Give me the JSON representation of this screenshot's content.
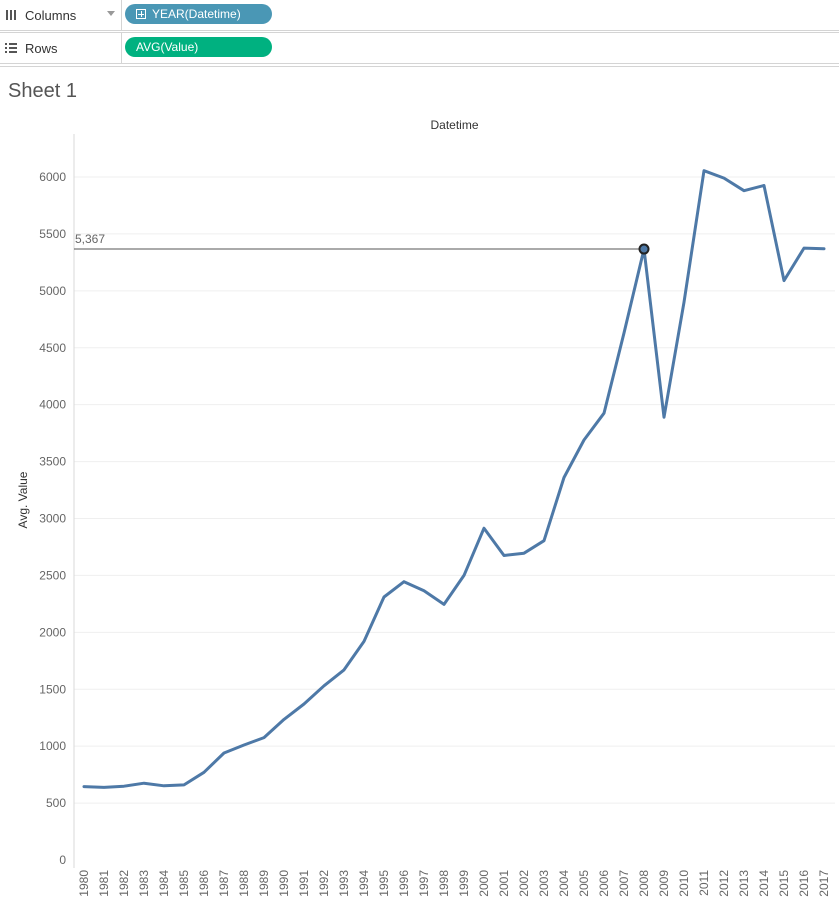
{
  "shelves": {
    "columns": {
      "label": "Columns",
      "pill": "YEAR(Datetime)",
      "pill_color": "#4a97b5"
    },
    "rows": {
      "label": "Rows",
      "pill": "AVG(Value)",
      "pill_color": "#00b180"
    }
  },
  "sheet": {
    "title": "Sheet 1"
  },
  "chart_data": {
    "type": "line",
    "title": "Datetime",
    "xlabel": "",
    "ylabel": "Avg. Value",
    "categories": [
      "1980",
      "1981",
      "1982",
      "1983",
      "1984",
      "1985",
      "1986",
      "1987",
      "1988",
      "1989",
      "1990",
      "1991",
      "1992",
      "1993",
      "1994",
      "1995",
      "1996",
      "1997",
      "1998",
      "1999",
      "2000",
      "2001",
      "2002",
      "2003",
      "2004",
      "2005",
      "2006",
      "2007",
      "2008",
      "2009",
      "2010",
      "2011",
      "2012",
      "2013",
      "2014",
      "2015",
      "2016",
      "2017"
    ],
    "series": [
      {
        "color": "#4e79a7",
        "values": [
          645,
          638,
          648,
          675,
          652,
          660,
          770,
          940,
          1010,
          1075,
          1235,
          1370,
          1530,
          1670,
          1920,
          2310,
          2445,
          2365,
          2245,
          2500,
          2915,
          2675,
          2695,
          2805,
          3360,
          3690,
          3925,
          4630,
          5367,
          3890,
          4900,
          6055,
          5990,
          5880,
          5925,
          5090,
          5375,
          5370
        ]
      }
    ],
    "ylim": [
      0,
      6300
    ],
    "yticks": [
      0,
      500,
      1000,
      1500,
      2000,
      2500,
      3000,
      3500,
      4000,
      4500,
      5000,
      5500,
      6000
    ],
    "grid": true,
    "reference": {
      "category": "2008",
      "value": 5367,
      "label": "5,367"
    }
  }
}
